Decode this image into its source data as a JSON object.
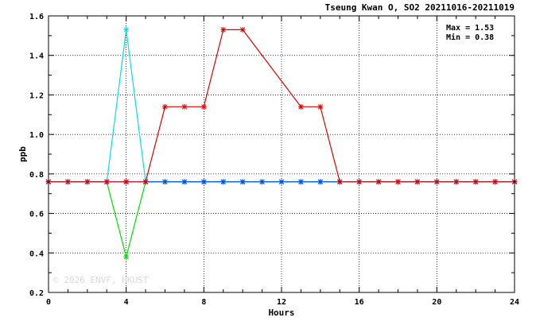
{
  "chart_data": {
    "type": "line",
    "title": "Tseung Kwan O, SO2 20211016-20211019",
    "xlabel": "Hours",
    "ylabel": "ppb",
    "xlim": [
      0,
      24
    ],
    "ylim": [
      0.2,
      1.6
    ],
    "xticks": [
      0,
      4,
      8,
      12,
      16,
      20,
      24
    ],
    "yticks": [
      0.2,
      0.4,
      0.6,
      0.8,
      1.0,
      1.2,
      1.4,
      1.6
    ],
    "xtick_labels": [
      "0",
      "4",
      "8",
      "12",
      "16",
      "20",
      "24"
    ],
    "ytick_labels": [
      "0.2",
      "0.4",
      "0.6",
      "0.8",
      "1.0",
      "1.2",
      "1.4",
      "1.6"
    ],
    "grid": true,
    "stats": {
      "max_label": "Max = 1.53",
      "min_label": "Min = 0.38"
    },
    "watermark": "© 2026 ENVF, HKUST",
    "series": [
      {
        "color": "#00e000",
        "x": [
          0,
          1,
          2,
          3,
          4,
          5,
          6,
          7,
          8,
          9,
          10,
          11,
          12,
          13,
          14,
          15,
          16,
          17,
          18,
          19,
          20,
          21,
          22,
          23,
          24
        ],
        "values": [
          0.76,
          0.76,
          0.76,
          0.76,
          0.38,
          0.76,
          0.76,
          0.76,
          0.76,
          0.76,
          0.76,
          0.76,
          0.76,
          0.76,
          0.76,
          0.76,
          0.76,
          0.76,
          0.76,
          0.76,
          0.76,
          0.76,
          0.76,
          0.76,
          0.76
        ]
      },
      {
        "color": "#00e0e0",
        "x": [
          0,
          1,
          2,
          3,
          4,
          5,
          6,
          7,
          8,
          9,
          10,
          11,
          12,
          13,
          14,
          15,
          16,
          17,
          18,
          19,
          20,
          21,
          22,
          23,
          24
        ],
        "values": [
          0.76,
          0.76,
          0.76,
          0.76,
          1.53,
          0.76,
          0.76,
          0.76,
          0.76,
          0.76,
          0.76,
          0.76,
          0.76,
          0.76,
          0.76,
          0.76,
          0.76,
          0.76,
          0.76,
          0.76,
          0.76,
          0.76,
          0.76,
          0.76,
          0.76
        ]
      },
      {
        "color": "#0040ff",
        "x": [
          0,
          1,
          2,
          3,
          4,
          5,
          6,
          7,
          8,
          9,
          10,
          11,
          12,
          13,
          14,
          15,
          16,
          17,
          18,
          19,
          20,
          21,
          22,
          23,
          24
        ],
        "values": [
          0.76,
          0.76,
          0.76,
          0.76,
          0.76,
          0.76,
          0.76,
          0.76,
          0.76,
          0.76,
          0.76,
          0.76,
          0.76,
          0.76,
          0.76,
          0.76,
          0.76,
          0.76,
          0.76,
          0.76,
          0.76,
          0.76,
          0.76,
          0.76,
          0.76
        ]
      },
      {
        "color": "#e00000",
        "x": [
          0,
          1,
          2,
          3,
          4,
          5,
          6,
          7,
          8,
          9,
          10,
          11,
          12,
          13,
          14,
          15,
          16,
          17,
          18,
          19,
          20,
          21,
          22,
          23,
          24
        ],
        "values": [
          0.76,
          0.76,
          0.76,
          0.76,
          0.76,
          0.76,
          1.14,
          1.14,
          1.14,
          1.53,
          1.53,
          null,
          null,
          1.14,
          1.14,
          0.76,
          0.76,
          0.76,
          0.76,
          0.76,
          0.76,
          0.76,
          0.76,
          0.76,
          0.76
        ]
      }
    ]
  }
}
